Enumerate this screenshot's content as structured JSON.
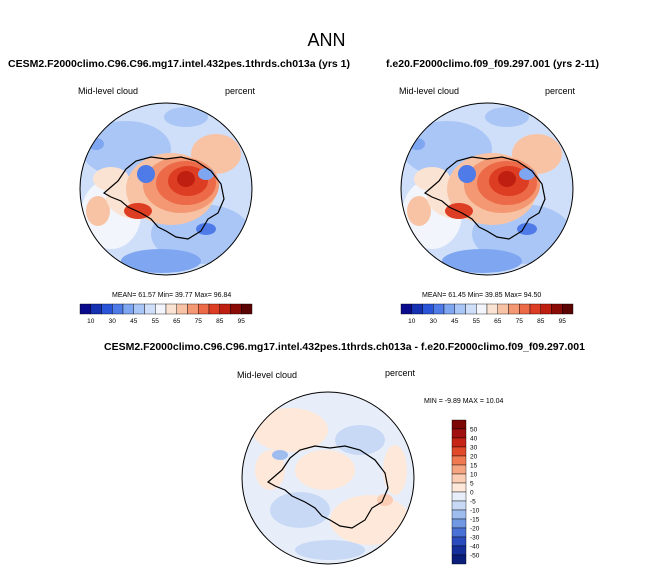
{
  "figure": {
    "title": "ANN"
  },
  "panels": [
    {
      "case": "CESM2.F2000climo.C96.C96.mg17.intel.432pes.1thrds.ch013a (yrs 1)",
      "variable": "Mid-level cloud",
      "units": "percent",
      "stats": "MEAN=  61.57  Min=  39.77  Max=  96.84"
    },
    {
      "case": "f.e20.F2000climo.f09_f09.297.001 (yrs 2-11)",
      "variable": "Mid-level cloud",
      "units": "percent",
      "stats": "MEAN=  61.45  Min=  39.85  Max=  94.50"
    },
    {
      "case": "CESM2.F2000climo.C96.C96.mg17.intel.432pes.1thrds.ch013a - f.e20.F2000climo.f09_f09.297.001",
      "variable": "Mid-level cloud",
      "units": "percent",
      "stats": "MIN =  -9.89 MAX =  10.04"
    }
  ],
  "chart_data": {
    "type": "heatmap",
    "projection": "south polar stereographic",
    "abs_colorbar": {
      "ticks": [
        "10",
        "30",
        "45",
        "55",
        "65",
        "75",
        "85",
        "95"
      ],
      "levels": [
        10,
        20,
        30,
        40,
        45,
        50,
        55,
        60,
        65,
        70,
        75,
        80,
        85,
        90,
        95
      ],
      "colors": [
        "#0a0a8c",
        "#1530b0",
        "#2a55d8",
        "#4f7be8",
        "#7fa6f0",
        "#a9c6f6",
        "#cfdff9",
        "#f2f5fb",
        "#fbe3d3",
        "#f8c3a5",
        "#f39872",
        "#ec6a48",
        "#dd3d22",
        "#bf1f10",
        "#8a0a06",
        "#5a0404"
      ]
    },
    "diff_colorbar": {
      "labels": [
        "50",
        "40",
        "30",
        "20",
        "15",
        "10",
        "5",
        "0",
        "-5",
        "-10",
        "-15",
        "-20",
        "-30",
        "-40",
        "-50"
      ],
      "colors": [
        "#7a0606",
        "#a11010",
        "#c62416",
        "#e04a2a",
        "#ef7a52",
        "#f6a582",
        "#fbcdb4",
        "#fde8da",
        "#e7eef9",
        "#c8d9f5",
        "#9fbcef",
        "#7198e3",
        "#4a72d6",
        "#2a4cbd",
        "#15309a",
        "#0a1e7a"
      ]
    }
  }
}
